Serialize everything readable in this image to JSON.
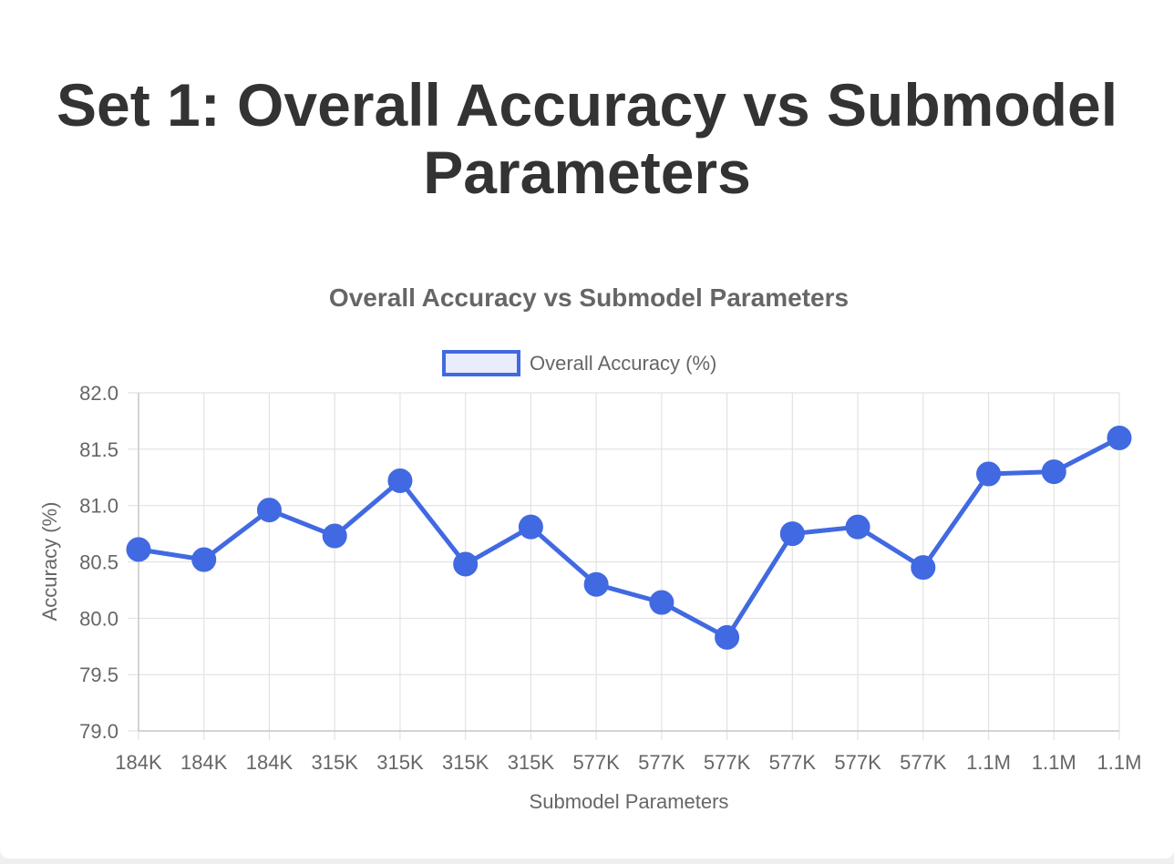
{
  "page": {
    "title": "Set 1: Overall Accuracy vs Submodel Parameters"
  },
  "colors": {
    "line": "#4169e1",
    "legend_fill": "#e8ecfb",
    "grid": "#e2e2e2",
    "axis": "#c8c8c8",
    "text": "#666666",
    "title": "#333333"
  },
  "chart_data": {
    "type": "line",
    "title": "Overall Accuracy vs Submodel Parameters",
    "xlabel": "Submodel Parameters",
    "ylabel": "Accuracy (%)",
    "ylim": [
      79.0,
      82.0
    ],
    "y_ticks": [
      "82.0",
      "81.5",
      "81.0",
      "80.5",
      "80.0",
      "79.5",
      "79.0"
    ],
    "categories": [
      "184K",
      "184K",
      "184K",
      "315K",
      "315K",
      "315K",
      "315K",
      "577K",
      "577K",
      "577K",
      "577K",
      "577K",
      "577K",
      "1.1M",
      "1.1M",
      "1.1M"
    ],
    "series": [
      {
        "name": "Overall Accuracy (%)",
        "values": [
          80.61,
          80.52,
          80.96,
          80.73,
          81.22,
          80.48,
          80.81,
          80.3,
          80.14,
          79.83,
          80.75,
          80.81,
          80.45,
          81.28,
          81.3,
          81.6
        ]
      }
    ],
    "legend_position": "top",
    "grid": true
  }
}
